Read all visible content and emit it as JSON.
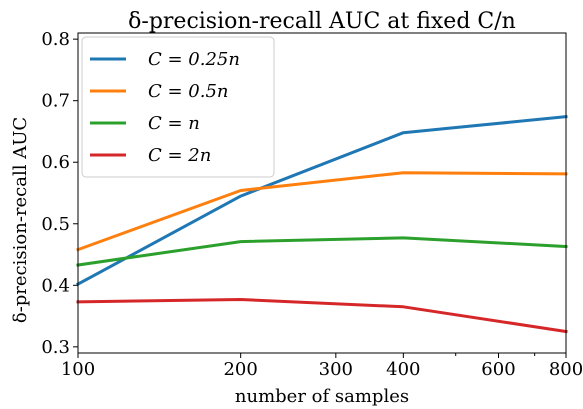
{
  "chart_data": {
    "type": "line",
    "title": "δ-precision-recall AUC at fixed C/n",
    "xlabel": "number of samples",
    "ylabel": "δ-precision-recall AUC",
    "xscale": "log",
    "xlim": [
      100,
      800
    ],
    "ylim": [
      0.29,
      0.81
    ],
    "x": [
      100,
      200,
      400,
      800
    ],
    "x_ticks": [
      100,
      200,
      300,
      400,
      600,
      800
    ],
    "x_tick_labels": [
      "100",
      "200",
      "300",
      "400",
      "600",
      "800"
    ],
    "y_ticks": [
      0.3,
      0.4,
      0.5,
      0.6,
      0.7,
      0.8
    ],
    "y_tick_labels": [
      "0.3",
      "0.4",
      "0.5",
      "0.6",
      "0.7",
      "0.8"
    ],
    "grid": false,
    "legend_position": "top-left",
    "series": [
      {
        "name": "C = 0.25n",
        "color": "#1f77b4",
        "values": [
          0.402,
          0.545,
          0.648,
          0.674
        ]
      },
      {
        "name": "C = 0.5n",
        "color": "#ff7f0e",
        "values": [
          0.458,
          0.554,
          0.583,
          0.581
        ]
      },
      {
        "name": "C = n",
        "color": "#2ca02c",
        "values": [
          0.433,
          0.471,
          0.477,
          0.463
        ]
      },
      {
        "name": "C = 2n",
        "color": "#d62728",
        "values": [
          0.373,
          0.377,
          0.365,
          0.325
        ]
      }
    ]
  }
}
